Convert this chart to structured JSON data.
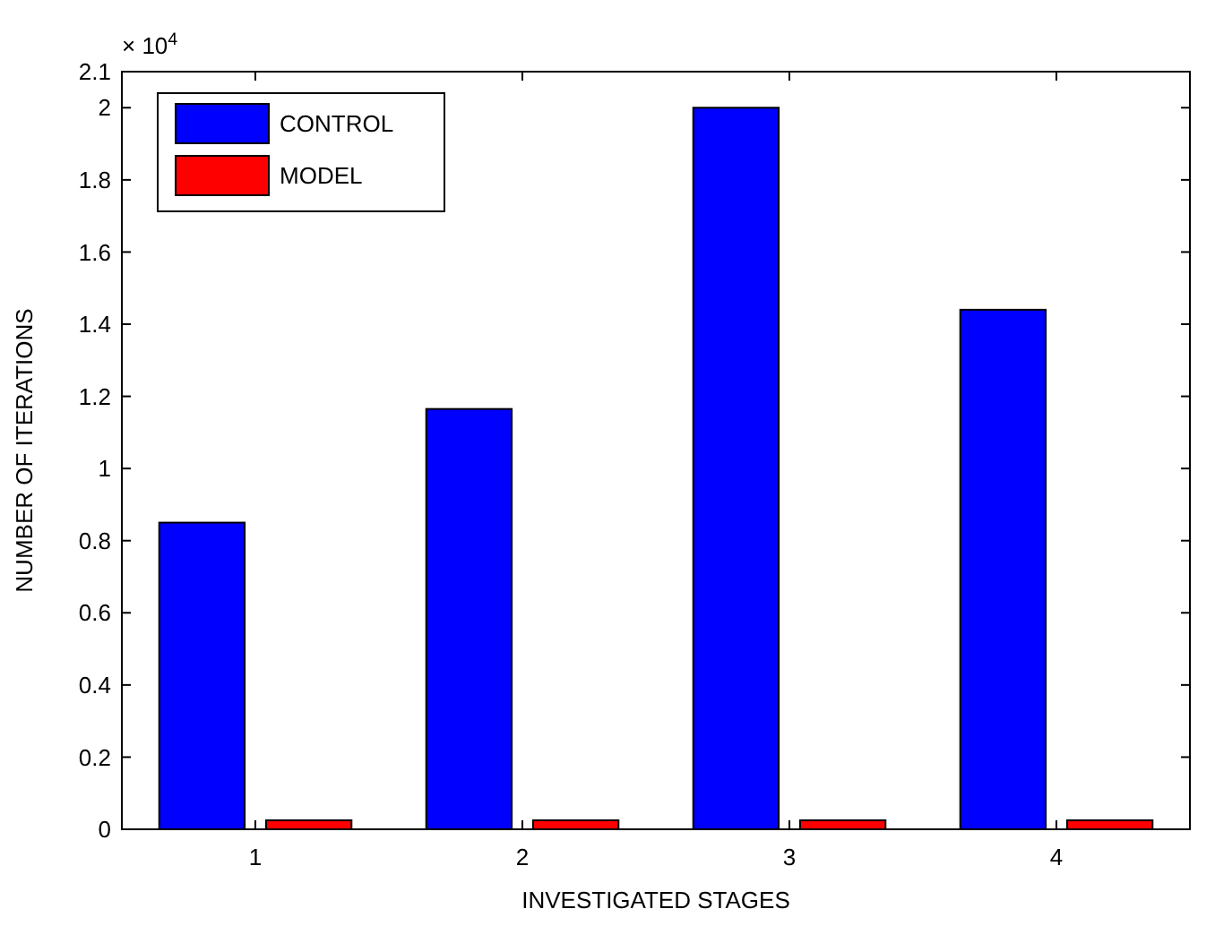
{
  "chart_data": {
    "type": "bar",
    "xlabel": "INVESTIGATED STAGES",
    "ylabel": "NUMBER OF ITERATIONS",
    "annotations": [
      "× 10$^{4}$"
    ],
    "categories": [
      "1",
      "2",
      "3",
      "4"
    ],
    "series": [
      {
        "name": "CONTROL",
        "color": "#0000ff",
        "values": [
          0.85,
          1.165,
          2.0,
          1.44
        ]
      },
      {
        "name": "MODEL",
        "color": "#ff0000",
        "values": [
          0.025,
          0.025,
          0.025,
          0.025
        ]
      }
    ],
    "ylim": [
      0,
      2.1
    ],
    "yticks": [
      0,
      0.2,
      0.4,
      0.6,
      0.8,
      1,
      1.2,
      1.4,
      1.6,
      1.8,
      2,
      2.1
    ],
    "legend": "top left",
    "grid": false
  }
}
